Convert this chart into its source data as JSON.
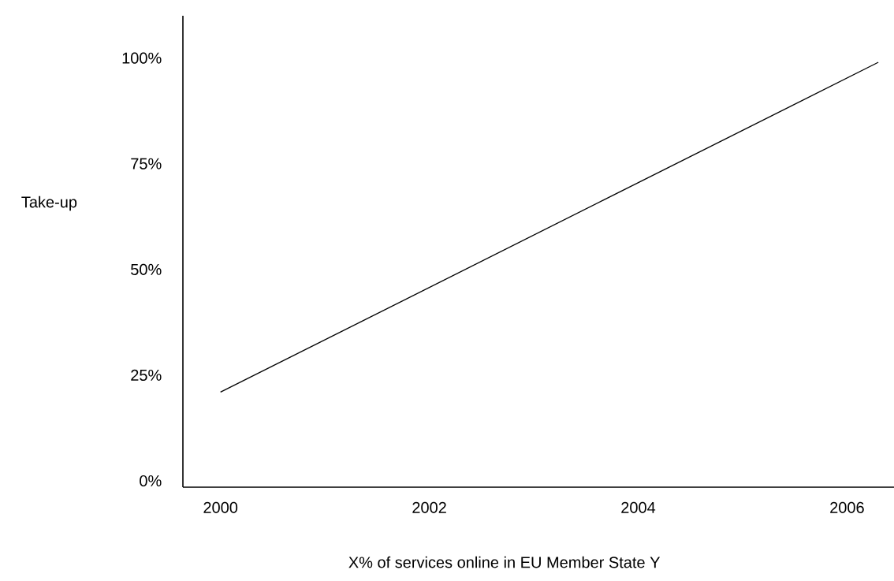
{
  "chart_data": {
    "type": "line",
    "xlabel": "X% of services online in EU Member State Y",
    "ylabel": "Take-up",
    "x": [
      2000,
      2006.3
    ],
    "values": [
      21,
      99
    ],
    "color": "#000000",
    "xlim": [
      1999.64,
      2006.45
    ],
    "ylim": [
      -1.5,
      110
    ],
    "xticks": [
      2000,
      2002,
      2004,
      2006
    ],
    "yticks": [
      {
        "value": 0,
        "label": "0%"
      },
      {
        "value": 25,
        "label": "25%"
      },
      {
        "value": 50,
        "label": "50%"
      },
      {
        "value": 75,
        "label": "75%"
      },
      {
        "value": 100,
        "label": "100%"
      }
    ]
  }
}
